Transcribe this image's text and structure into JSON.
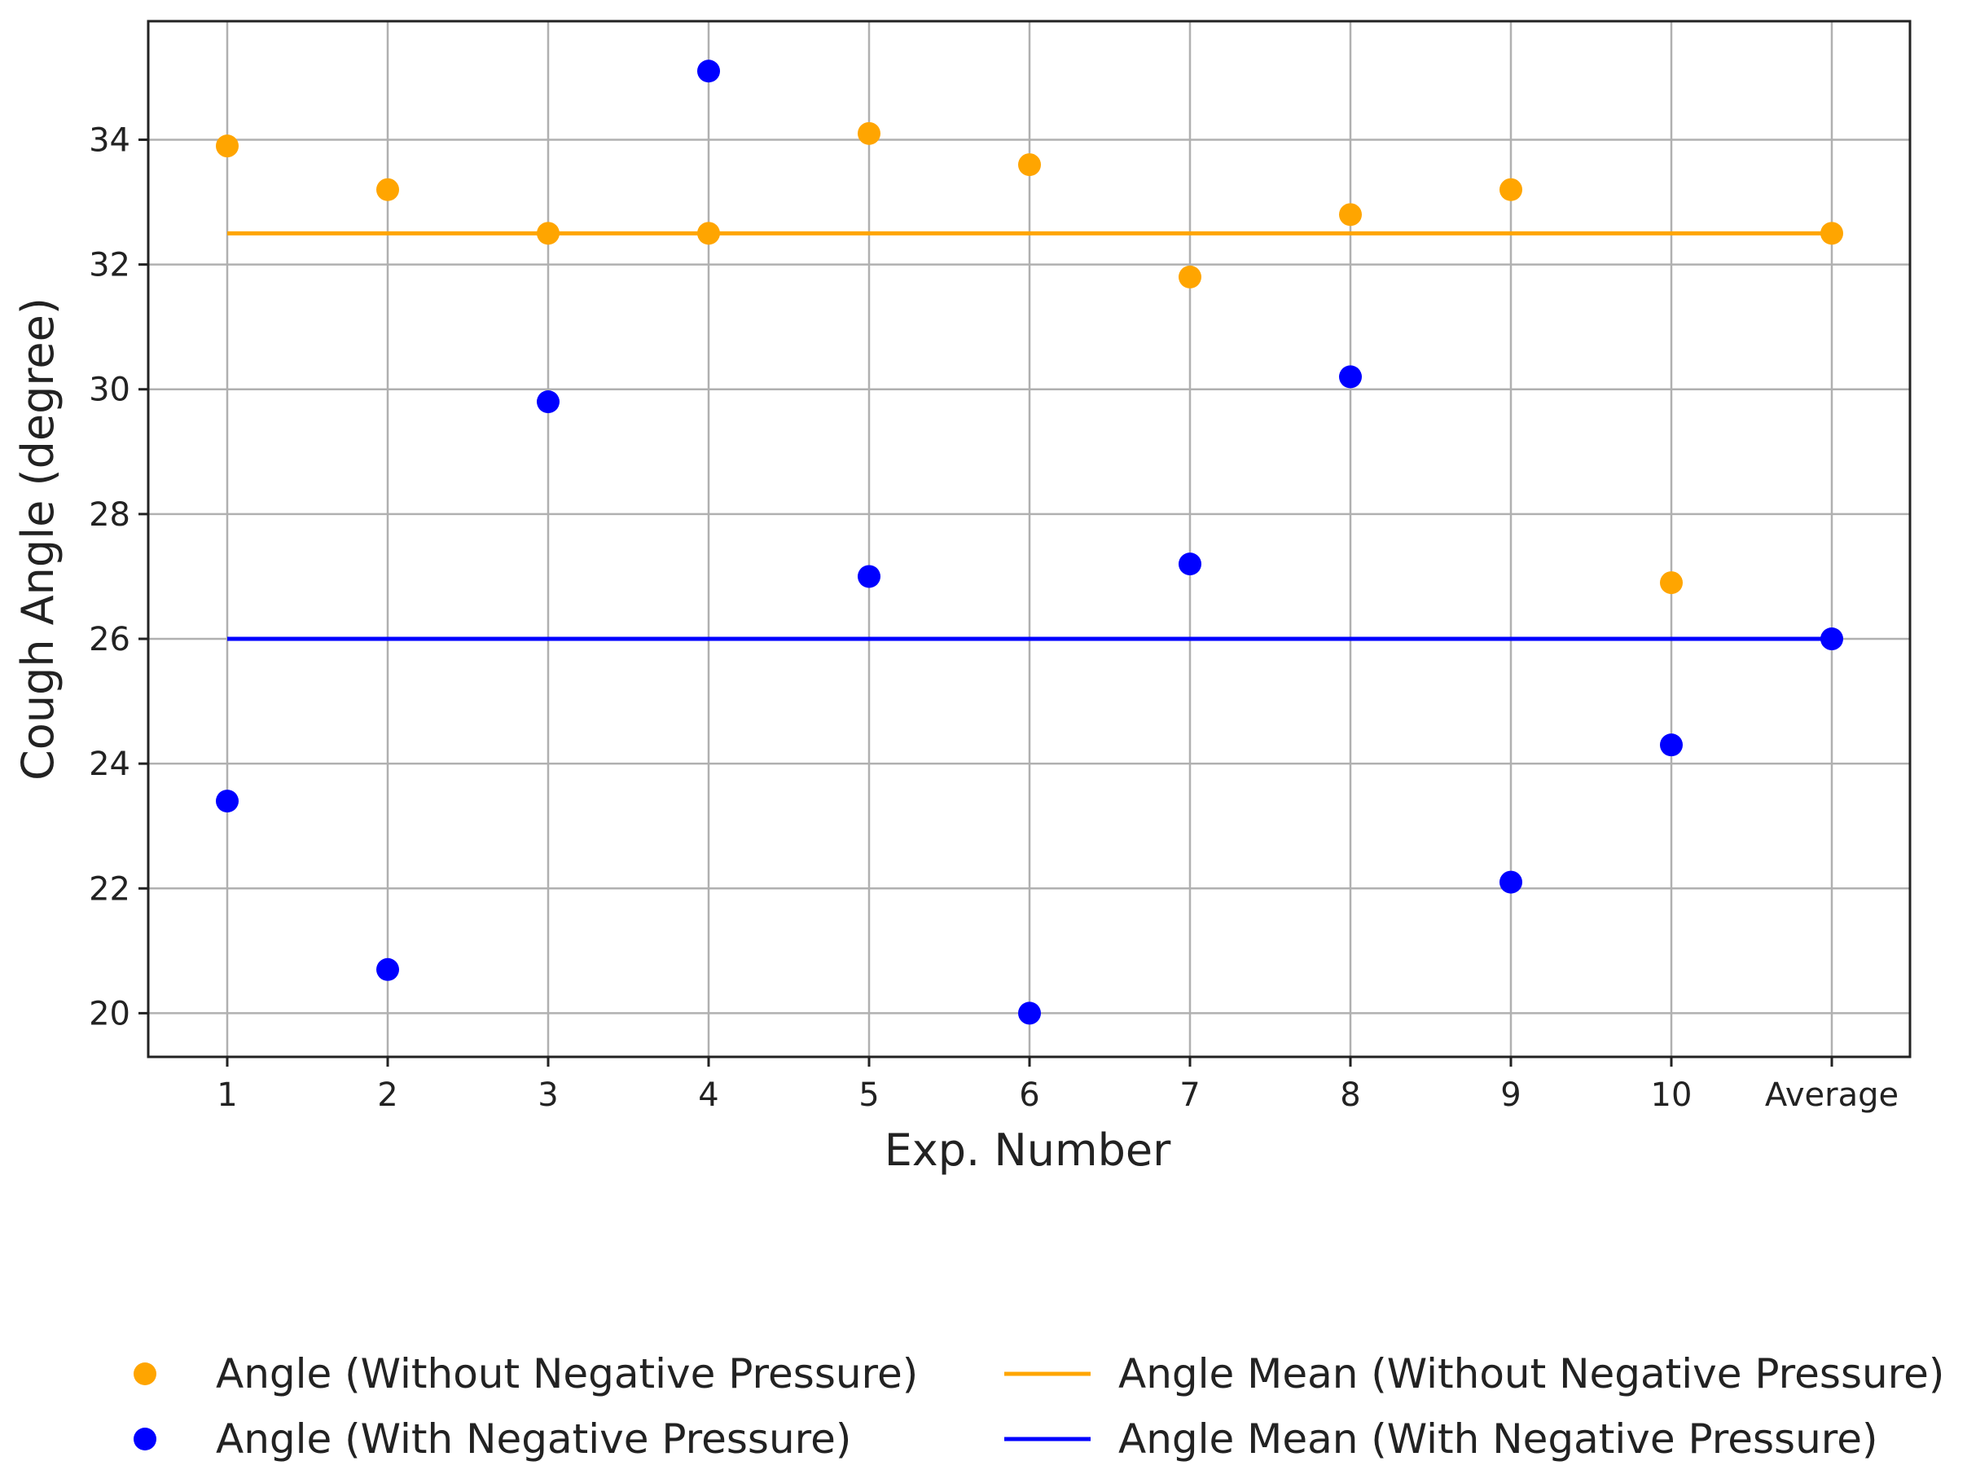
{
  "chart_data": {
    "type": "scatter",
    "title": "",
    "xlabel": "Exp. Number",
    "ylabel": "Cough Angle (degree)",
    "categories": [
      "1",
      "2",
      "3",
      "4",
      "5",
      "6",
      "7",
      "8",
      "9",
      "10",
      "Average"
    ],
    "yticks": [
      "20",
      "22",
      "24",
      "26",
      "28",
      "30",
      "32",
      "34"
    ],
    "ylim": [
      19.3,
      35.9
    ],
    "grid": true,
    "legend_position": "bottom",
    "series": [
      {
        "name": "Angle (Without Negative Pressure)",
        "kind": "points",
        "color": "#FFA500",
        "values": [
          33.9,
          33.2,
          32.5,
          32.5,
          34.1,
          33.6,
          31.8,
          32.8,
          33.2,
          26.9,
          32.5
        ]
      },
      {
        "name": "Angle (With Negative Pressure)",
        "kind": "points",
        "color": "#0000FF",
        "values": [
          23.4,
          20.7,
          29.8,
          35.1,
          27.0,
          20.0,
          27.2,
          30.2,
          22.1,
          24.3,
          26.0
        ]
      },
      {
        "name": "Angle Mean (Without Negative Pressure)",
        "kind": "line",
        "color": "#FFA500",
        "value": 32.5
      },
      {
        "name": "Angle Mean (With Negative Pressure)",
        "kind": "line",
        "color": "#0000FF",
        "value": 26.0
      }
    ]
  }
}
